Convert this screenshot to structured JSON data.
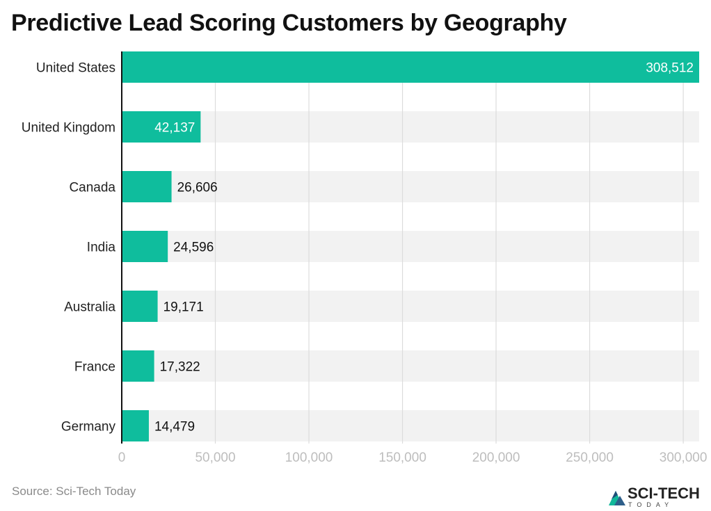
{
  "chart_data": {
    "type": "bar",
    "orientation": "horizontal",
    "title": "Predictive Lead Scoring Customers by Geography",
    "categories": [
      "United States",
      "United Kingdom",
      "Canada",
      "India",
      "Australia",
      "France",
      "Germany"
    ],
    "values": [
      308512,
      42137,
      26606,
      24596,
      19171,
      17322,
      14479
    ],
    "value_labels": [
      "308,512",
      "42,137",
      "26,606",
      "24,596",
      "19,171",
      "17,322",
      "14,479"
    ],
    "xticks": [
      0,
      50000,
      100000,
      150000,
      200000,
      250000,
      300000
    ],
    "xtick_labels": [
      "0",
      "50,000",
      "100,000",
      "150,000",
      "200,000",
      "250,000",
      "300,000"
    ],
    "xlim": [
      0,
      308512
    ],
    "xlabel": "",
    "ylabel": "",
    "grid": "vertical",
    "legend": "none",
    "colors": {
      "bar": "#0fbd9d",
      "band": "#f2f2f2",
      "grid": "#dcdcdc",
      "axis": "#111111",
      "tick_text": "#bdbdbd",
      "category_text": "#222222",
      "label_inside": "#ffffff",
      "label_outside": "#111111"
    }
  },
  "source": "Source: Sci-Tech Today",
  "brand": {
    "name": "SCI-TECH",
    "tagline": "TODAY",
    "icon": "sci-tech-mountain-logo-icon"
  }
}
